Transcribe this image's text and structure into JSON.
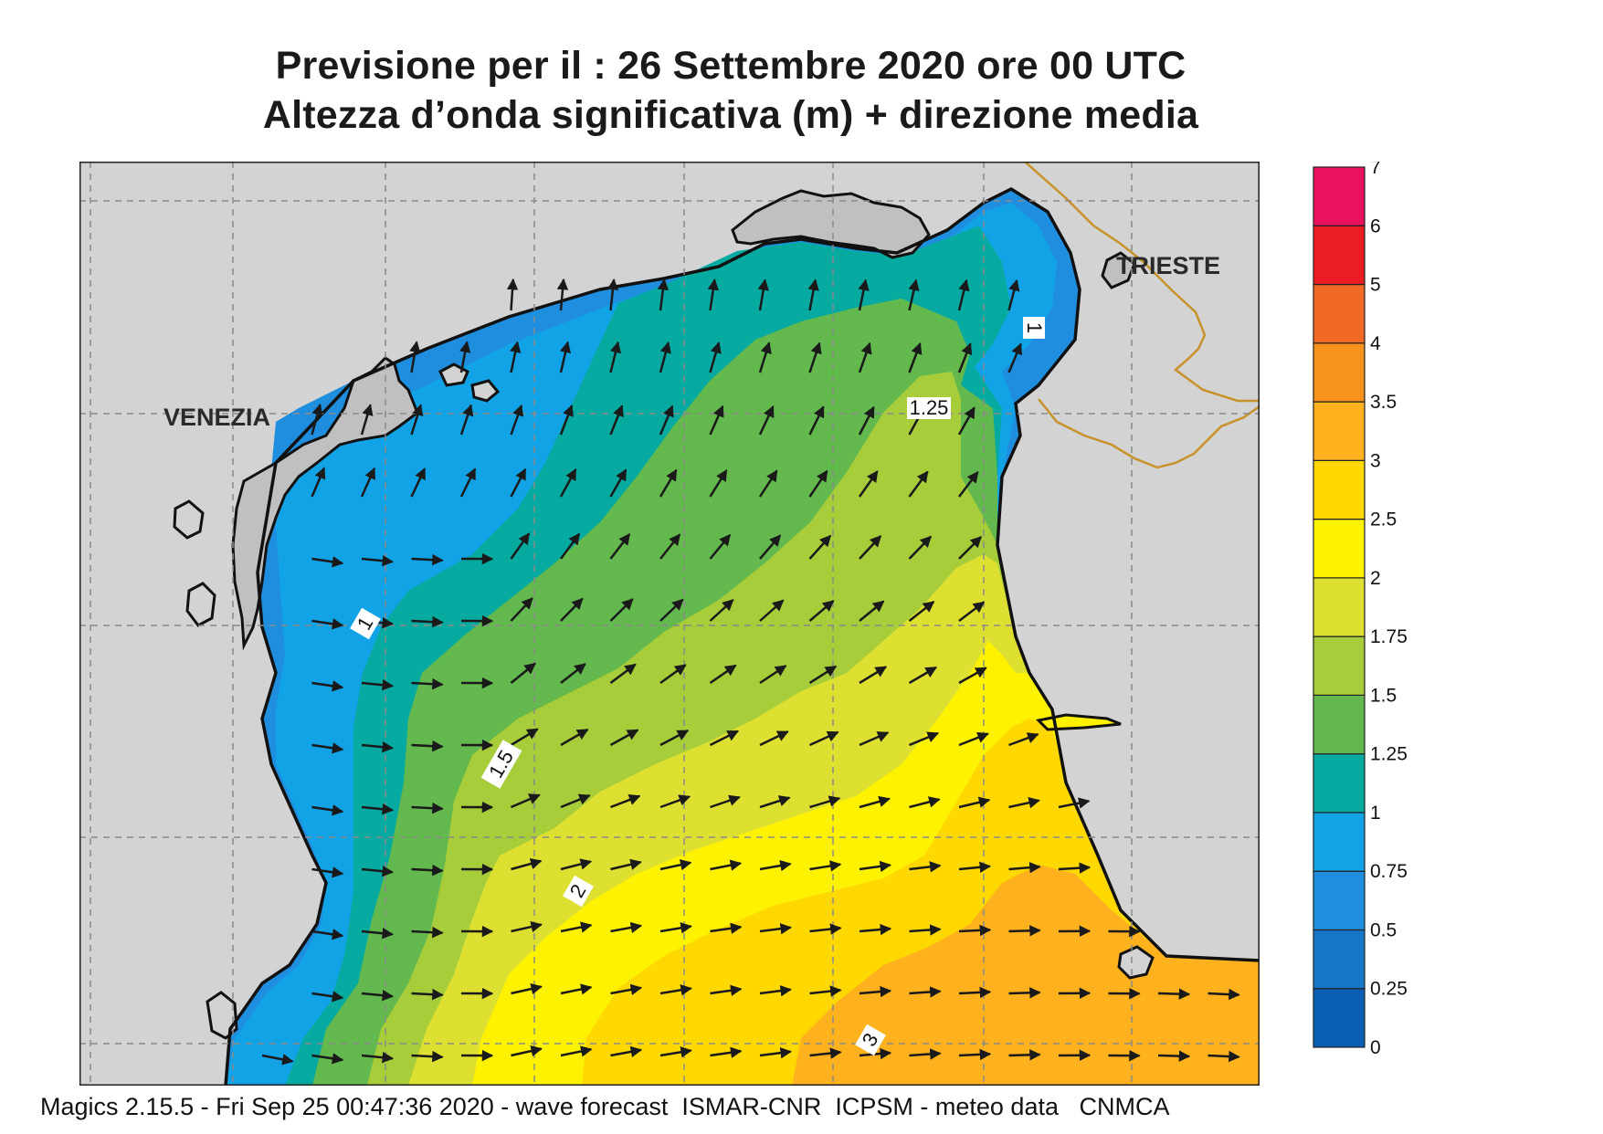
{
  "title": {
    "line1": "Previsione per il  :  26 Settembre 2020   ore 00 UTC",
    "line2": "Altezza d’onda significativa (m) + direzione media"
  },
  "footer": "Magics 2.15.5 - Fri Sep 25 00:47:36 2020 - wave forecast  ISMAR-CNR  ICPSM - meteo data   CNMCA",
  "cities": [
    {
      "name": "VENEZIA"
    },
    {
      "name": "TRIESTE"
    }
  ],
  "contour_labels": [
    "1",
    "1.5",
    "1.25",
    "1",
    "2",
    "3"
  ],
  "legend": {
    "ticks": [
      "0",
      "0.25",
      "0.5",
      "0.75",
      "1",
      "1.25",
      "1.5",
      "1.75",
      "2",
      "2.5",
      "3",
      "3.5",
      "4",
      "5",
      "6",
      "7"
    ],
    "colors": [
      "#0a5fb4",
      "#1677c8",
      "#1f8ede",
      "#12a3e6",
      "#07aaa0",
      "#63b84e",
      "#a7cd3a",
      "#dde031",
      "#fff200",
      "#ffd800",
      "#ffb21e",
      "#f7931d",
      "#f16a25",
      "#ec1c24",
      "#e8125f"
    ]
  },
  "map_colors": {
    "land": "#d3d3d3",
    "lagoon": "#c0c0c0",
    "coast": "#111111",
    "border": "#c8922a",
    "grid": "#8a8a8a",
    "arrow": "#1a1a1a"
  },
  "field_legend_colors": {
    "h0_50": "#1677c8",
    "h0_75": "#1f8ede",
    "h1_00": "#12a3e6",
    "h1_25": "#07aaa0",
    "h1_50": "#63b84e",
    "h1_75": "#a7cd3a",
    "h2_00": "#dde031",
    "h2_50": "#fff200",
    "h3_00": "#ffd800",
    "h3_50": "#ffb21e"
  }
}
